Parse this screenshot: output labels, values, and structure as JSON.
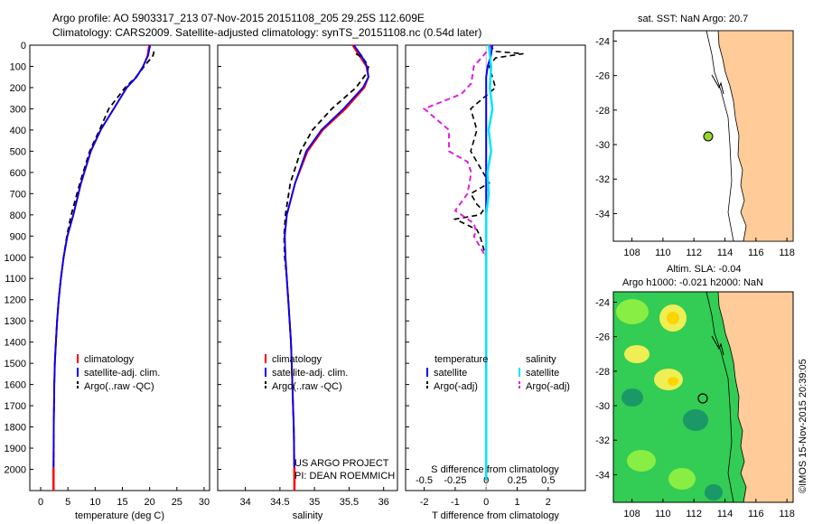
{
  "header": {
    "line1": "Argo profile: AO 5903317_213 07-Nov-2015 20151108_205 29.25S 112.609E",
    "line2": "Climatology: CARS2009. Satellite-adjusted climatology: synTS_20151108.nc (0.54d later)"
  },
  "colors": {
    "clim": "#ff0000",
    "sat": "#0000ff",
    "argo": "#000000",
    "sat_s": "#00e5ff",
    "argo_s": "#e020e0",
    "land": "#ffcc99"
  },
  "chart_data": [
    {
      "type": "line",
      "id": "temperature",
      "xlabel": "temperature (deg C)",
      "ylabel": "",
      "xlim": [
        -2,
        31
      ],
      "ylim": [
        2100,
        0
      ],
      "xticks": [
        "0",
        "5",
        "10",
        "15",
        "20",
        "25",
        "30"
      ],
      "yticks": [
        "0",
        "100",
        "200",
        "300",
        "400",
        "500",
        "600",
        "700",
        "800",
        "900",
        "1000",
        "1100",
        "1200",
        "1300",
        "1400",
        "1500",
        "1600",
        "1700",
        "1800",
        "1900",
        "2000"
      ],
      "legend": [
        "climatology",
        "satellite-adj. clim.",
        "Argo(..raw -QC)"
      ],
      "series": [
        {
          "name": "climatology",
          "x": [
            19.9,
            19.6,
            18.8,
            17.6,
            15.8,
            13.4,
            11.0,
            9.2,
            7.4,
            6.0,
            4.9,
            4.2,
            3.7,
            3.3,
            3.0,
            2.8,
            2.6,
            2.5,
            2.45,
            2.4,
            2.35
          ],
          "y": [
            0,
            50,
            100,
            150,
            200,
            300,
            400,
            500,
            650,
            800,
            900,
            1000,
            1100,
            1200,
            1300,
            1400,
            1500,
            1600,
            1700,
            1800,
            2050
          ]
        },
        {
          "name": "satellite-adj. clim.",
          "x": [
            20.1,
            19.7,
            18.8,
            17.6,
            15.8,
            13.4,
            11.0,
            9.2,
            7.4,
            6.0,
            4.9,
            4.2,
            3.7,
            3.3,
            3.0,
            2.8,
            2.6,
            2.5,
            2.45,
            2.4,
            2.35
          ],
          "y": [
            0,
            50,
            100,
            150,
            200,
            300,
            400,
            500,
            650,
            800,
            900,
            1000,
            1100,
            1200,
            1300,
            1400,
            1500,
            1600,
            1700,
            1800,
            2050
          ]
        },
        {
          "name": "Argo(..raw -QC)",
          "x": [
            20.8,
            20.6,
            19.0,
            17.5,
            15.5,
            12.5,
            10.8,
            9.0,
            7.2,
            5.6,
            4.8,
            4.2,
            3.7,
            3.3,
            3.0,
            2.8,
            2.6,
            2.5,
            2.45,
            2.4,
            2.35
          ],
          "y": [
            30,
            50,
            100,
            150,
            200,
            300,
            400,
            500,
            650,
            800,
            900,
            1000,
            1100,
            1200,
            1300,
            1400,
            1500,
            1600,
            1700,
            1800,
            2050
          ]
        }
      ]
    },
    {
      "type": "line",
      "id": "salinity",
      "xlabel": "salinity",
      "ylabel": "",
      "xlim": [
        33.6,
        36.2
      ],
      "ylim": [
        2100,
        0
      ],
      "xticks": [
        "34",
        "34.5",
        "35",
        "35.5",
        "36"
      ],
      "legend": [
        "climatology",
        "satellite-adj. clim.",
        "Argo(..raw -QC)"
      ],
      "annotation": [
        "US ARGO PROJECT",
        "PI: DEAN ROEMMICH"
      ],
      "series": [
        {
          "name": "climatology",
          "x": [
            35.55,
            35.65,
            35.75,
            35.78,
            35.72,
            35.45,
            35.12,
            34.9,
            34.72,
            34.6,
            34.57,
            34.58,
            34.6,
            34.62,
            34.64,
            34.66,
            34.67,
            34.68,
            34.69,
            34.7,
            34.71
          ],
          "y": [
            0,
            50,
            100,
            150,
            200,
            300,
            400,
            500,
            650,
            800,
            900,
            1000,
            1100,
            1200,
            1300,
            1400,
            1500,
            1600,
            1700,
            1800,
            2050
          ]
        },
        {
          "name": "satellite-adj. clim.",
          "x": [
            35.57,
            35.68,
            35.76,
            35.78,
            35.7,
            35.42,
            35.1,
            34.88,
            34.72,
            34.6,
            34.57,
            34.58,
            34.6,
            34.62,
            34.64,
            34.66,
            34.67,
            34.68,
            34.69,
            34.7,
            34.71
          ],
          "y": [
            0,
            50,
            100,
            150,
            200,
            300,
            400,
            500,
            650,
            800,
            900,
            1000,
            1100,
            1200,
            1300,
            1400,
            1500,
            1600,
            1700,
            1800,
            2050
          ]
        },
        {
          "name": "Argo(..raw -QC)",
          "x": [
            35.6,
            35.7,
            35.78,
            35.76,
            35.6,
            35.25,
            34.97,
            34.8,
            34.65,
            34.58,
            34.56,
            34.57,
            34.6,
            34.62,
            34.64,
            34.66,
            34.67,
            34.68,
            34.69,
            34.7,
            34.71
          ],
          "y": [
            40,
            60,
            100,
            130,
            200,
            300,
            400,
            500,
            650,
            800,
            900,
            1000,
            1100,
            1200,
            1300,
            1400,
            1500,
            1600,
            1700,
            1800,
            2050
          ]
        }
      ]
    },
    {
      "type": "line",
      "id": "difference",
      "xlabel": "T difference from climatology",
      "xlabel_top": "S difference from climatology",
      "xlim": [
        -2.6,
        3.2
      ],
      "ylim": [
        2100,
        0
      ],
      "xticks": [
        "-2",
        "-1",
        "0",
        "1",
        "2"
      ],
      "xticks_s": [
        "-0.5",
        "-0.25",
        "0",
        "0.25",
        "0.5"
      ],
      "legend_t": [
        "temperature",
        "satellite",
        "Argo(-adj)"
      ],
      "legend_s": [
        "salinity",
        "satellite",
        "Argo(-adj)"
      ],
      "series": [
        {
          "name": "T satellite",
          "x": [
            0.2,
            0.15,
            0.05,
            0.0,
            0.0,
            0.0,
            0.0,
            0.0,
            0.0,
            0.0,
            0.0,
            0.0,
            0.0
          ],
          "y": [
            0,
            50,
            100,
            150,
            300,
            500,
            700,
            800,
            900,
            1000,
            1200,
            1500,
            2050
          ]
        },
        {
          "name": "T Argo(-adj)",
          "x": [
            0.1,
            0.3,
            1.2,
            0.3,
            0.1,
            0.2,
            0.3,
            -0.5,
            -0.3,
            -0.5,
            0.1,
            -0.5,
            -0.3,
            -0.1,
            -0.2,
            -1.0,
            -0.3,
            -0.2,
            0.0,
            0.0,
            0.0
          ],
          "y": [
            0,
            30,
            40,
            60,
            100,
            150,
            200,
            300,
            400,
            500,
            650,
            700,
            750,
            780,
            800,
            820,
            870,
            900,
            1000,
            1200,
            2050
          ]
        },
        {
          "name": "S satellite",
          "x": [
            0.02,
            0.04,
            0.03,
            0.05,
            0.02,
            0.04,
            0.01,
            0.02,
            0.0,
            0.0
          ],
          "y": [
            0,
            100,
            200,
            300,
            400,
            500,
            600,
            700,
            800,
            2050
          ]
        },
        {
          "name": "S Argo(-adj)",
          "x": [
            0.05,
            -0.1,
            -0.12,
            -0.2,
            -0.5,
            -0.3,
            -0.3,
            -0.15,
            -0.12,
            -0.15,
            -0.25,
            -0.1,
            -0.08,
            -0.1,
            -0.05,
            0.0,
            0.0
          ],
          "y": [
            0,
            100,
            180,
            230,
            300,
            400,
            500,
            550,
            600,
            700,
            780,
            840,
            880,
            900,
            950,
            1000,
            2050
          ]
        }
      ]
    },
    {
      "type": "map",
      "id": "sst-map",
      "title": "sat. SST: NaN Argo: 20.7",
      "xticks": [
        "108",
        "110",
        "112",
        "114",
        "116",
        "118"
      ],
      "yticks": [
        "-24",
        "-26",
        "-28",
        "-30",
        "-32",
        "-34"
      ],
      "xlim": [
        106.8,
        118.4
      ],
      "ylim": [
        -35.6,
        -23.4
      ],
      "marker": {
        "lon": 112.609,
        "lat": -29.25
      }
    },
    {
      "type": "map",
      "id": "sla-map",
      "title1": "Altim. SLA: -0.04",
      "title2": "Argo h1000: -0.021 h2000: NaN",
      "xticks": [
        "108",
        "110",
        "112",
        "114",
        "116",
        "118"
      ],
      "yticks": [
        "-24",
        "-26",
        "-28",
        "-30",
        "-32",
        "-34"
      ],
      "xlim": [
        106.8,
        118.4
      ],
      "ylim": [
        -35.6,
        -23.4
      ],
      "marker": {
        "lon": 112.609,
        "lat": -29.25
      }
    }
  ],
  "footer": {
    "credit": "©IMOS 15-Nov-2015 20:39:05"
  }
}
